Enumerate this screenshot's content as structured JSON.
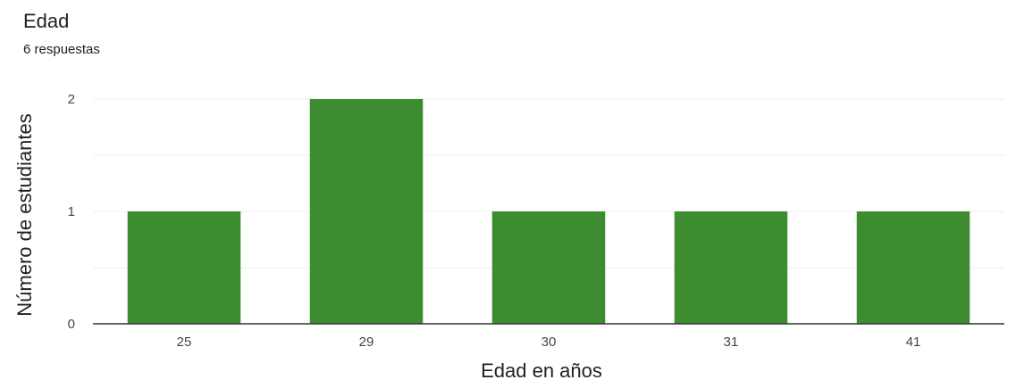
{
  "header": {
    "title": "Edad",
    "subtitle": "6 respuestas"
  },
  "chart_data": {
    "type": "bar",
    "categories": [
      "25",
      "29",
      "30",
      "31",
      "41"
    ],
    "values": [
      1,
      2,
      1,
      1,
      1
    ],
    "xlabel": "Edad en años",
    "ylabel": "Número de estudiantes",
    "ylim": [
      0,
      2
    ],
    "yticks": [
      0,
      1,
      2
    ],
    "grid": true,
    "legend": "none",
    "bar_color": "#3d8c2f",
    "grid_color": "#ececec",
    "axis_color": "#333333"
  }
}
